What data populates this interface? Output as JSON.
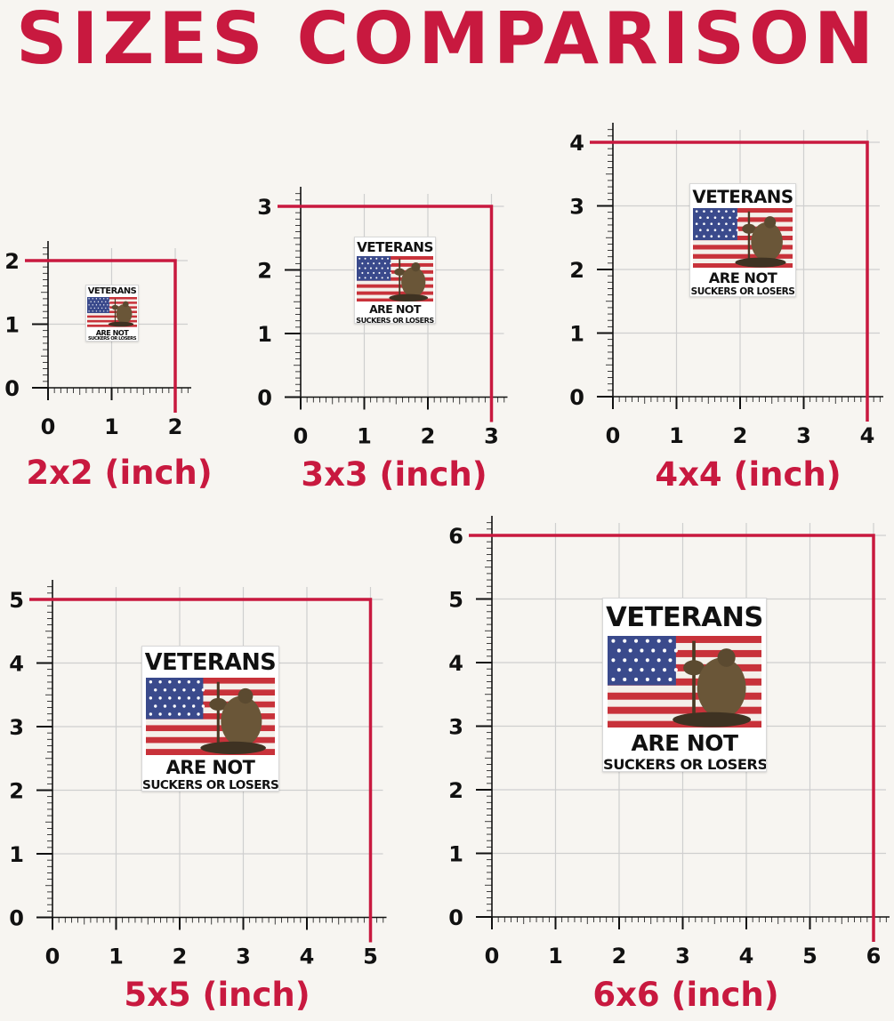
{
  "title": "SIZES COMPARISON",
  "colors": {
    "accent": "#c8193f",
    "grid": "#cfcfcf",
    "axis": "#111111",
    "background": "#f7f5f1"
  },
  "sticker": {
    "title": "VETERANS",
    "line2": "ARE NOT",
    "line3": "SUCKERS OR LOSERS"
  },
  "panels": [
    {
      "id": "2x2",
      "size": 2,
      "label": "2x2 (inch)",
      "ticks": [
        "0",
        "1",
        "2"
      ]
    },
    {
      "id": "3x3",
      "size": 3,
      "label": "3x3 (inch)",
      "ticks": [
        "0",
        "1",
        "2",
        "3"
      ]
    },
    {
      "id": "4x4",
      "size": 4,
      "label": "4x4 (inch)",
      "ticks": [
        "0",
        "1",
        "2",
        "3",
        "4"
      ]
    },
    {
      "id": "5x5",
      "size": 5,
      "label": "5x5 (inch)",
      "ticks": [
        "0",
        "1",
        "2",
        "3",
        "4",
        "5"
      ]
    },
    {
      "id": "6x6",
      "size": 6,
      "label": "6x6 (inch)",
      "ticks": [
        "0",
        "1",
        "2",
        "3",
        "4",
        "5",
        "6"
      ]
    }
  ]
}
